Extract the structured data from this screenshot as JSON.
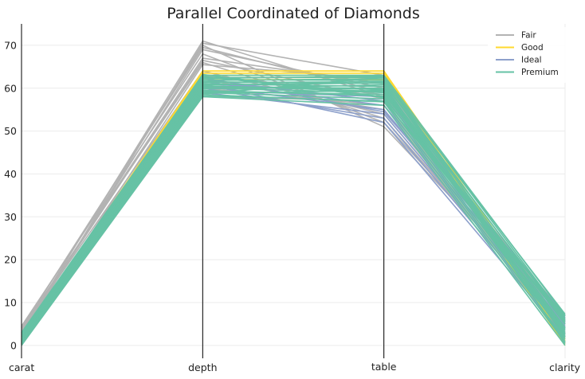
{
  "chart_data": {
    "type": "line",
    "subtype": "parallel-coordinates",
    "title": "Parallel Coordinated of Diamonds",
    "categories": [
      "carat",
      "depth",
      "table",
      "clarity"
    ],
    "ylim": [
      -3,
      75
    ],
    "yticks": [
      0,
      10,
      20,
      30,
      40,
      50,
      60,
      70
    ],
    "grid": true,
    "legend_position": "top-right",
    "series": [
      {
        "name": "Fair",
        "color": "#b3b3b3",
        "lines": [
          [
            2.0,
            58.0,
            57.0,
            1.0
          ],
          [
            2.5,
            60.0,
            56.0,
            2.0
          ],
          [
            3.0,
            62.0,
            55.0,
            3.0
          ],
          [
            3.5,
            64.0,
            54.0,
            4.0
          ],
          [
            4.0,
            66.0,
            53.0,
            5.0
          ],
          [
            4.5,
            68.0,
            52.0,
            6.0
          ],
          [
            4.0,
            70.0,
            51.0,
            6.5
          ],
          [
            3.0,
            71.0,
            58.0,
            7.0
          ],
          [
            2.5,
            69.0,
            60.0,
            5.5
          ],
          [
            3.5,
            67.0,
            61.0,
            3.5
          ],
          [
            1.5,
            65.5,
            62.0,
            2.5
          ],
          [
            2.0,
            70.5,
            63.0,
            1.5
          ],
          [
            4.2,
            69.5,
            59.0,
            4.5
          ],
          [
            3.2,
            66.5,
            57.5,
            2.2
          ],
          [
            1.0,
            63.0,
            58.5,
            0.5
          ]
        ]
      },
      {
        "name": "Good",
        "color": "#ffd92f",
        "lines": [
          [
            0.5,
            64.0,
            64.0,
            1.0
          ],
          [
            1.0,
            63.5,
            63.5,
            2.0
          ],
          [
            1.5,
            63.0,
            63.0,
            0.5
          ],
          [
            0.8,
            62.5,
            62.5,
            1.5
          ],
          [
            2.0,
            64.0,
            64.0,
            3.0
          ],
          [
            0.3,
            62.0,
            62.0,
            0.0
          ]
        ]
      },
      {
        "name": "Ideal",
        "color": "#8da0cb",
        "lines": [
          [
            0.3,
            61.0,
            52.0,
            2.0
          ],
          [
            0.5,
            60.0,
            53.0,
            3.0
          ],
          [
            0.8,
            59.0,
            54.0,
            4.0
          ],
          [
            1.0,
            60.5,
            55.0,
            5.0
          ],
          [
            0.4,
            61.5,
            56.0,
            6.0
          ],
          [
            0.6,
            62.0,
            57.0,
            7.0
          ],
          [
            1.2,
            59.5,
            58.0,
            5.5
          ],
          [
            0.7,
            61.0,
            59.0,
            4.5
          ],
          [
            0.9,
            60.0,
            60.0,
            3.5
          ],
          [
            0.2,
            62.5,
            54.5,
            6.5
          ]
        ]
      },
      {
        "name": "Premium",
        "color": "#66c2a5",
        "lines": [
          [
            0.0,
            58.0,
            56.0,
            0.0
          ],
          [
            0.3,
            58.5,
            56.8,
            0.7
          ],
          [
            0.6,
            59.0,
            57.5,
            1.4
          ],
          [
            0.9,
            59.5,
            58.2,
            2.1
          ],
          [
            1.2,
            60.0,
            59.0,
            2.8
          ],
          [
            1.5,
            60.5,
            59.7,
            3.5
          ],
          [
            1.8,
            61.0,
            60.4,
            4.2
          ],
          [
            2.1,
            61.5,
            61.1,
            4.9
          ],
          [
            2.4,
            62.0,
            61.8,
            5.6
          ],
          [
            2.7,
            62.5,
            62.5,
            6.3
          ],
          [
            3.0,
            63.0,
            63.0,
            7.0
          ],
          [
            0.4,
            58.2,
            57.0,
            6.8
          ],
          [
            1.0,
            59.2,
            58.6,
            5.2
          ],
          [
            1.6,
            60.3,
            60.0,
            3.1
          ],
          [
            2.2,
            61.3,
            61.5,
            1.8
          ],
          [
            2.8,
            62.3,
            62.8,
            0.4
          ],
          [
            0.2,
            58.8,
            59.5,
            2.5
          ],
          [
            1.4,
            60.8,
            61.2,
            6.0
          ],
          [
            2.5,
            62.8,
            58.0,
            4.0
          ],
          [
            3.0,
            61.8,
            62.2,
            7.3
          ],
          [
            0.7,
            59.8,
            60.8,
            0.9
          ],
          [
            1.9,
            63.2,
            57.8,
            5.8
          ],
          [
            0.1,
            60.6,
            59.2,
            3.8
          ],
          [
            2.3,
            58.6,
            62.6,
            2.6
          ]
        ]
      }
    ]
  }
}
